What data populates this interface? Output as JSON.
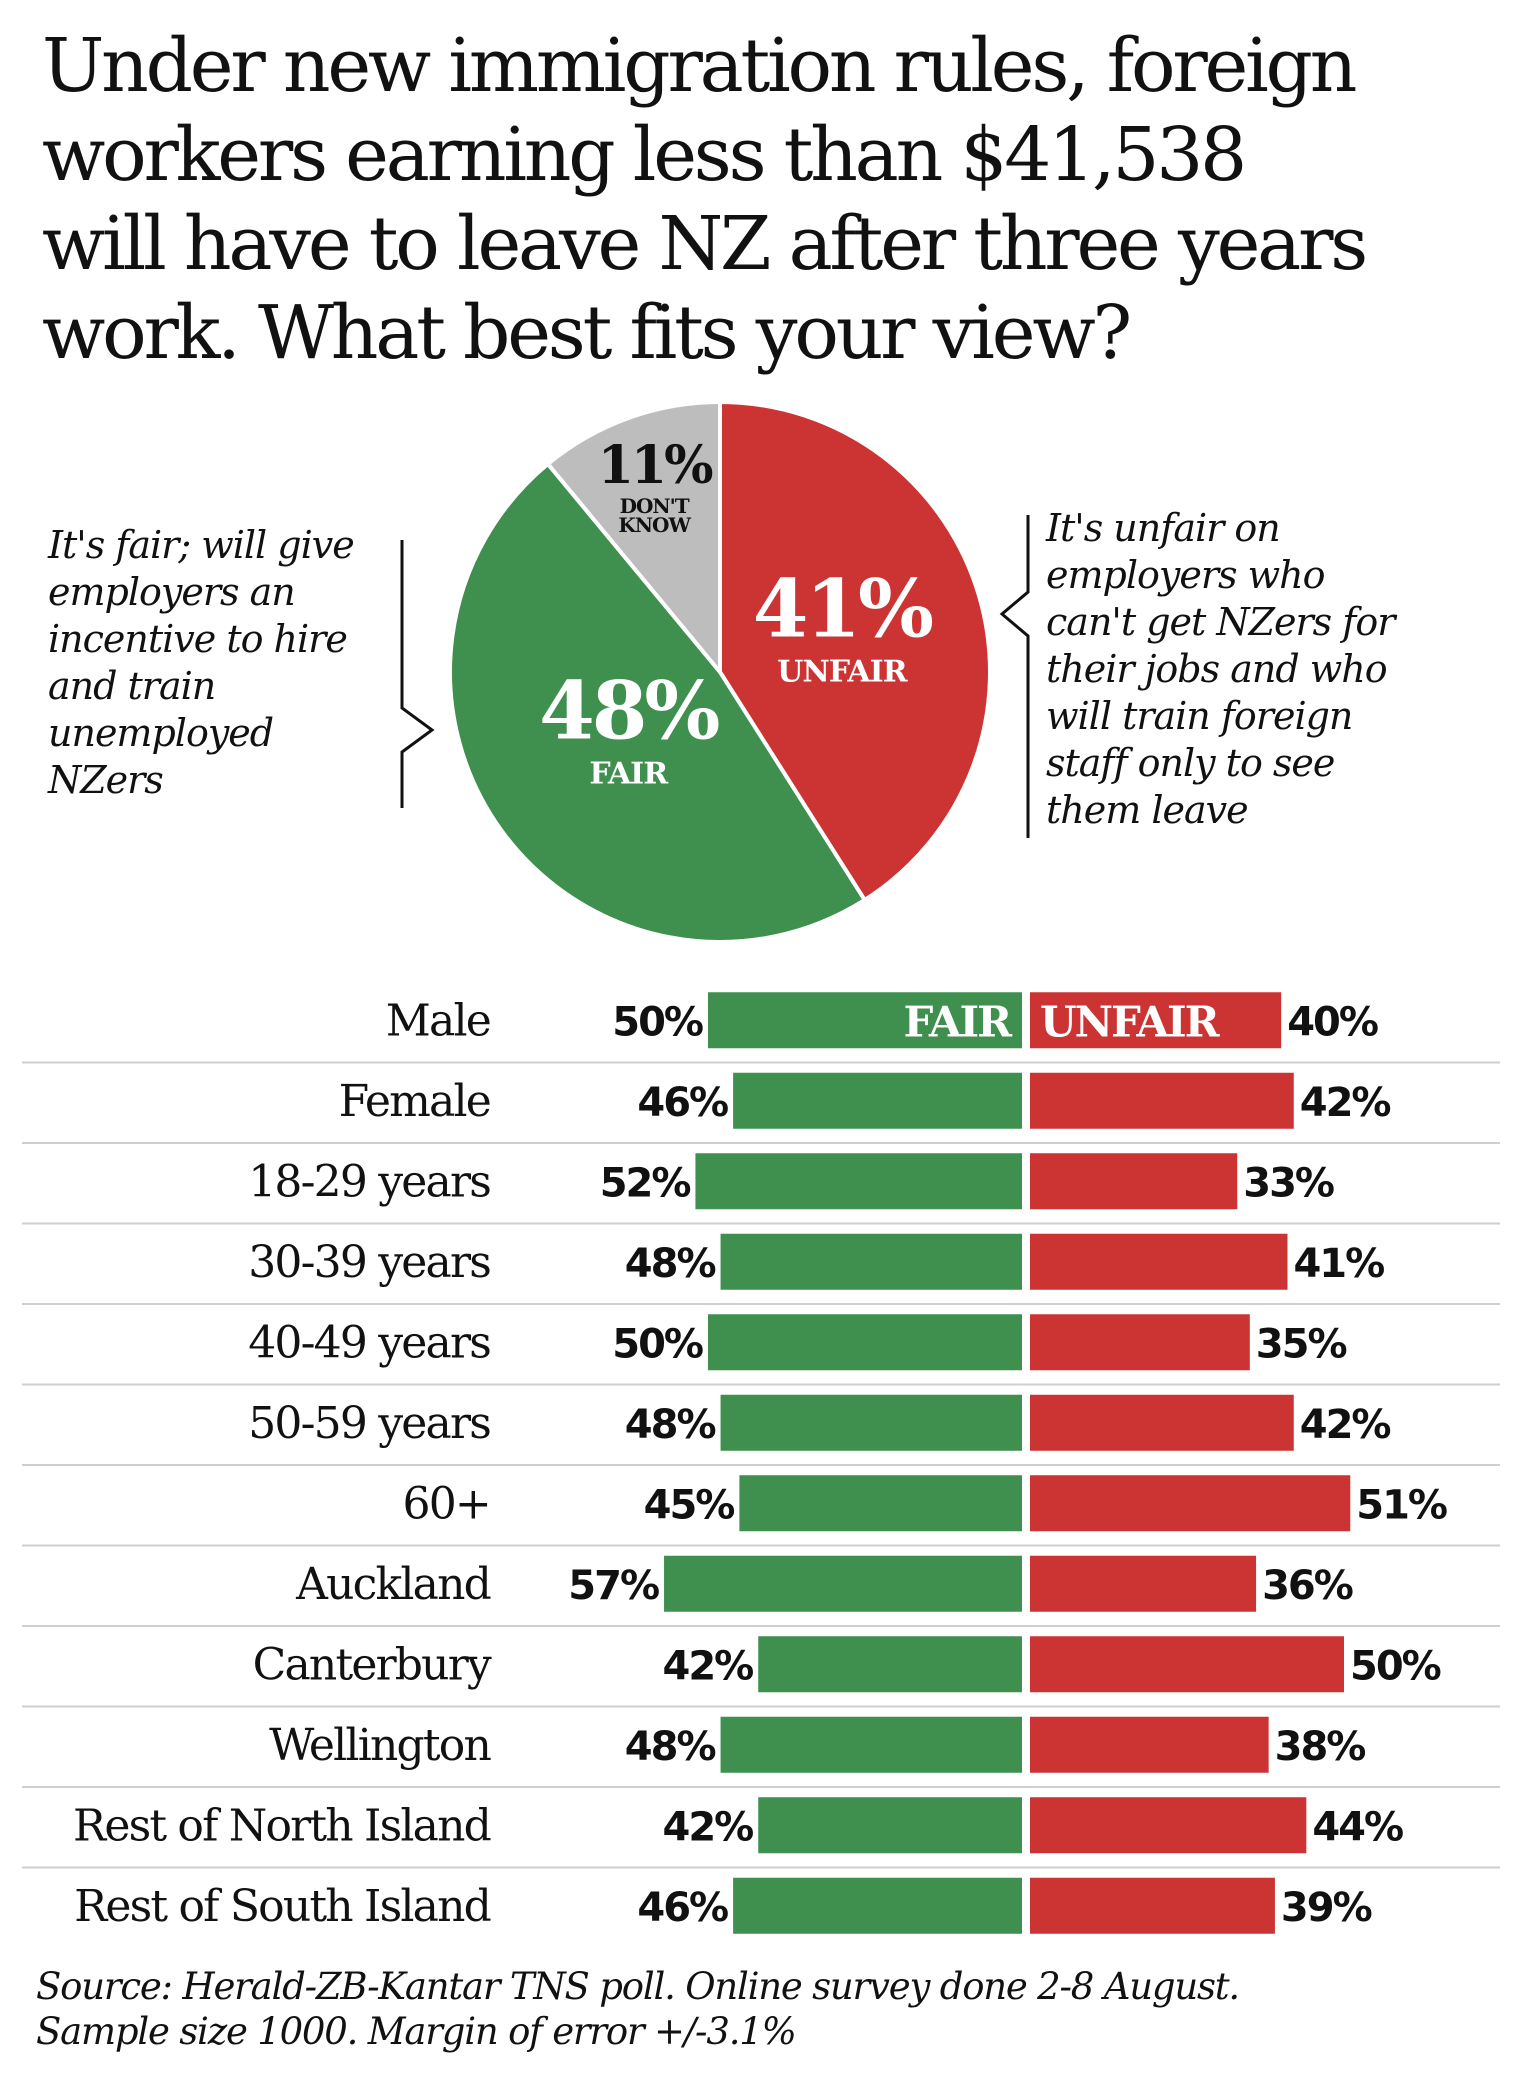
{
  "title_lines": [
    "Under new immigration rules, foreign",
    "workers earning less than $41,538",
    "will have to leave NZ after three years",
    "work. What best fits your view?"
  ],
  "annotations": {
    "fair_lines": [
      "It's fair; will give",
      "employers an",
      "incentive to hire",
      "and train",
      "unemployed",
      "NZers"
    ],
    "unfair_lines": [
      "It's unfair on",
      "employers who",
      "can't get NZers for",
      "their jobs and who",
      "will train foreign",
      "staff only to see",
      "them leave"
    ]
  },
  "source_lines": [
    "Source: Herald-ZB-Kantar TNS poll.  Online survey done 2-8 August.",
    "Sample size 1000. Margin of error  +/-3.1%"
  ],
  "colors": {
    "fair": "#3f8f4e",
    "unfair": "#cc3333",
    "dont_know": "#bdbdbd"
  },
  "chart_data": [
    {
      "type": "pie",
      "slices": [
        {
          "label": "UNFAIR",
          "value": 41,
          "text": "41%",
          "color": "#cc3333"
        },
        {
          "label": "FAIR",
          "value": 48,
          "text": "48%",
          "color": "#3f8f4e"
        },
        {
          "label": "DON'T KNOW",
          "label_lines": [
            "DON'T",
            "KNOW"
          ],
          "value": 11,
          "text": "11%",
          "color": "#bdbdbd"
        }
      ]
    },
    {
      "type": "bar",
      "orientation": "diverging-horizontal",
      "series_labels": {
        "fair": "FAIR",
        "unfair": "UNFAIR"
      },
      "categories": [
        "Male",
        "Female",
        "18-29 years",
        "30-39 years",
        "40-49 years",
        "50-59 years",
        "60+",
        "Auckland",
        "Canterbury",
        "Wellington",
        "Rest of North Island",
        "Rest of South Island"
      ],
      "series": [
        {
          "name": "FAIR",
          "values": [
            50,
            46,
            52,
            48,
            50,
            48,
            45,
            57,
            42,
            48,
            42,
            46
          ]
        },
        {
          "name": "UNFAIR",
          "values": [
            40,
            42,
            33,
            41,
            35,
            42,
            51,
            36,
            50,
            38,
            44,
            39
          ]
        }
      ]
    }
  ]
}
